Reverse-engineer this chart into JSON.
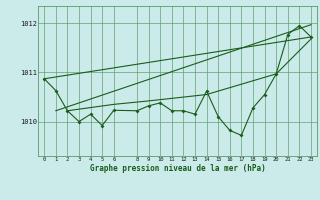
{
  "xlabel": "Graphe pression niveau de la mer (hPa)",
  "bg_color": "#cbeaea",
  "grid_color": "#5a9966",
  "line_color": "#1a5c1a",
  "x_ticks": [
    0,
    1,
    2,
    3,
    4,
    5,
    6,
    8,
    9,
    10,
    11,
    12,
    13,
    14,
    15,
    16,
    17,
    18,
    19,
    20,
    21,
    22,
    23
  ],
  "ylim": [
    1009.3,
    1012.35
  ],
  "yticks": [
    1010,
    1011,
    1012
  ],
  "data_line_x": [
    0,
    1,
    2,
    3,
    4,
    5,
    6,
    8,
    9,
    10,
    11,
    12,
    13,
    14,
    15,
    16,
    17,
    18,
    19,
    20,
    21,
    22,
    23
  ],
  "data_line_y": [
    1010.87,
    1010.63,
    1010.22,
    1010.0,
    1010.15,
    1009.92,
    1010.23,
    1010.22,
    1010.32,
    1010.38,
    1010.22,
    1010.22,
    1010.15,
    1010.62,
    1010.1,
    1009.82,
    1009.72,
    1010.28,
    1010.55,
    1010.97,
    1011.77,
    1011.95,
    1011.72
  ],
  "trend_line1_x": [
    0,
    23
  ],
  "trend_line1_y": [
    1010.87,
    1011.72
  ],
  "trend_line2_x": [
    1,
    23
  ],
  "trend_line2_y": [
    1010.22,
    1011.97
  ],
  "trend_line3_x": [
    2,
    6,
    9,
    14,
    20,
    23
  ],
  "trend_line3_y": [
    1010.22,
    1010.35,
    1010.42,
    1010.55,
    1010.97,
    1011.68
  ]
}
